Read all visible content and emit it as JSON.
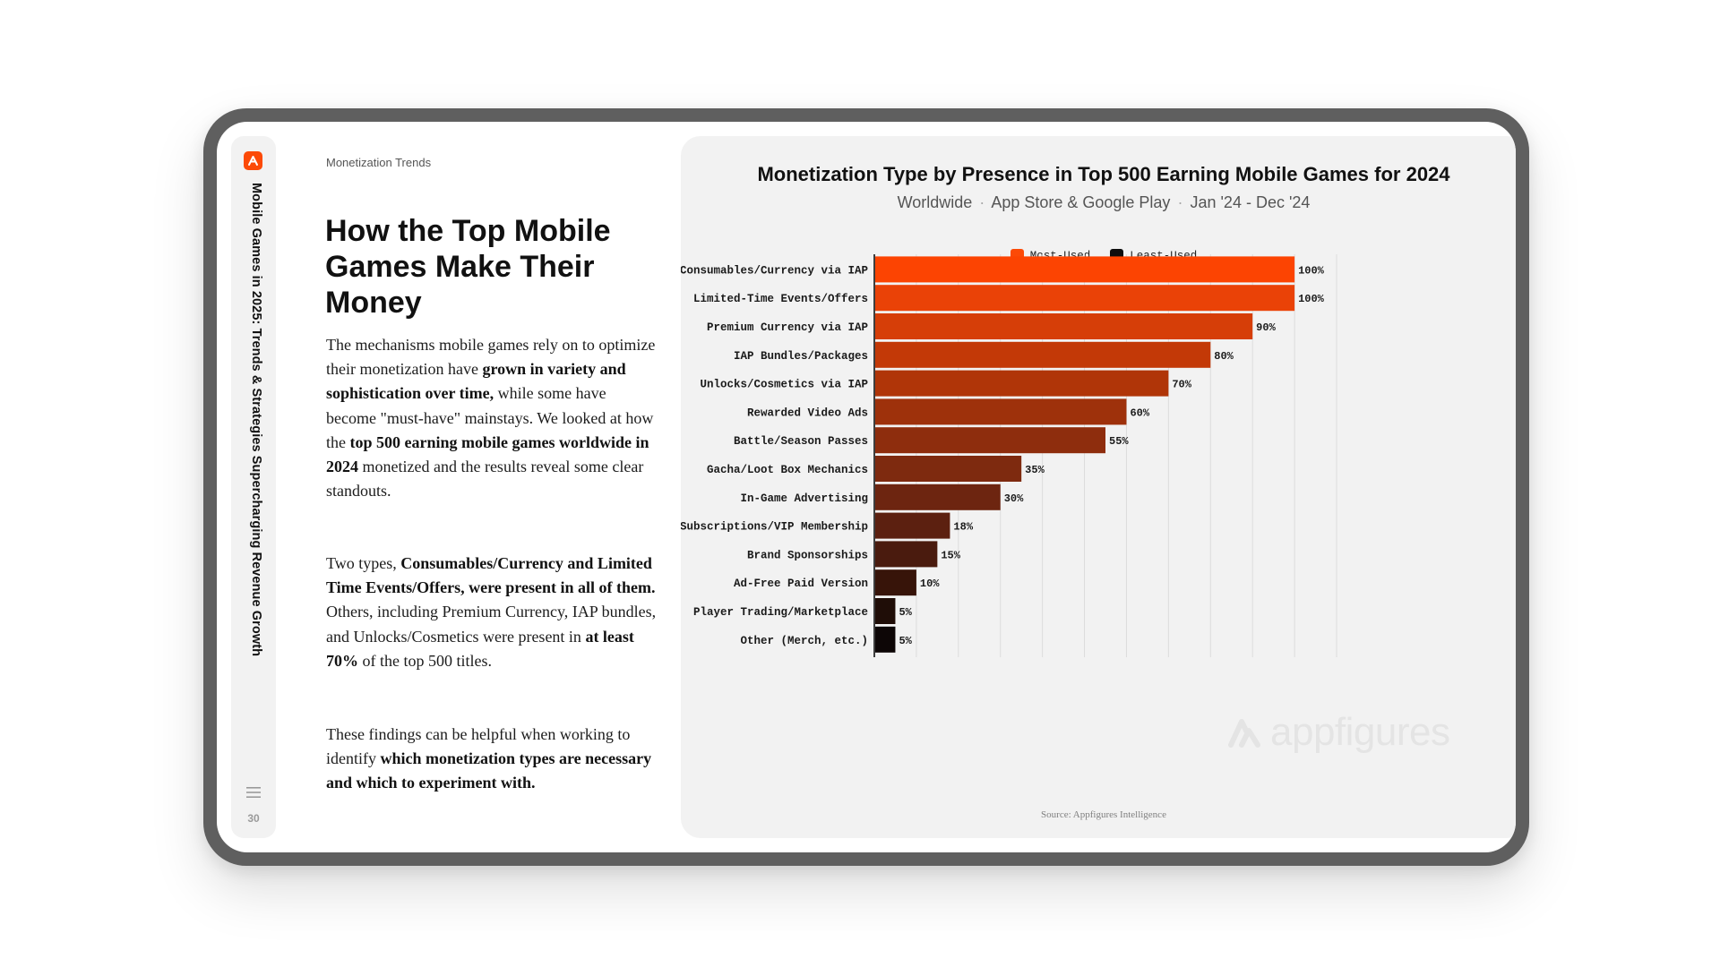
{
  "sidebar": {
    "title": "Mobile Games in 2025: Trends & Strategies Supercharging Revenue Growth",
    "page_number": "30",
    "icons": {
      "logo": "appfigures-logo-icon",
      "menu": "menu-icon"
    }
  },
  "section_label": "Monetization Trends",
  "heading": "How the Top Mobile Games Make Their Money",
  "paragraphs": [
    [
      {
        "text": "The mechanisms mobile games rely on to optimize their monetization have ",
        "bold": false
      },
      {
        "text": "grown in variety and sophistication over time,",
        "bold": true
      },
      {
        "text": " while some have become \"must-have\" mainstays. We looked at how the ",
        "bold": false
      },
      {
        "text": "top 500 earning mobile games worldwide in 2024",
        "bold": true
      },
      {
        "text": " monetized and the results reveal some clear standouts.",
        "bold": false
      }
    ],
    [
      {
        "text": "Two types, ",
        "bold": false
      },
      {
        "text": "Consumables/Currency and Limited Time Events/Offers, were present in all of them.",
        "bold": true
      },
      {
        "text": " Others, including Premium Currency, IAP bundles, and Unlocks/Cosmetics were present in ",
        "bold": false
      },
      {
        "text": "at least 70%",
        "bold": true
      },
      {
        "text": " of the top 500 titles.",
        "bold": false
      }
    ],
    [
      {
        "text": "These findings can be helpful when working to identify ",
        "bold": false
      },
      {
        "text": "which monetization types are necessary and which to experiment with.",
        "bold": true
      }
    ]
  ],
  "chart_data": {
    "type": "bar",
    "orientation": "horizontal",
    "title": "Monetization Type by Presence in Top 500 Earning Mobile Games for 2024",
    "subtitle_parts": [
      "Worldwide",
      "App Store & Google Play",
      "Jan '24 - Dec '24"
    ],
    "categories": [
      "Consumables/Currency via IAP",
      "Limited-Time Events/Offers",
      "Premium Currency via IAP",
      "IAP Bundles/Packages",
      "Unlocks/Cosmetics via IAP",
      "Rewarded Video Ads",
      "Battle/Season Passes",
      "Gacha/Loot Box Mechanics",
      "In-Game Advertising",
      "Subscriptions/VIP Membership",
      "Brand Sponsorships",
      "Ad-Free Paid Version",
      "Player Trading/Marketplace",
      "Other (Merch, etc.)"
    ],
    "values": [
      100,
      100,
      90,
      80,
      70,
      60,
      55,
      35,
      30,
      18,
      15,
      10,
      5,
      5
    ],
    "value_labels": [
      "100%",
      "100%",
      "90%",
      "80%",
      "70%",
      "60%",
      "55%",
      "35%",
      "30%",
      "18%",
      "15%",
      "10%",
      "5%",
      "5%"
    ],
    "xlim": [
      0,
      110
    ],
    "grid": true,
    "legend_position": "top-center",
    "legend": [
      {
        "label": "Most-Used",
        "color": "#fc4a07"
      },
      {
        "label": "Least-Used",
        "color": "#0d0d0d"
      }
    ],
    "colors": [
      "#fc4402",
      "#ea4207",
      "#d63e08",
      "#c33907",
      "#b03508",
      "#9e310b",
      "#8e2d0d",
      "#7e2a0f",
      "#6d2510",
      "#5c2010",
      "#4a1b0e",
      "#371409",
      "#1f0d07",
      "#0d0606"
    ],
    "source": "Source: Appfigures Intelligence",
    "watermark": "appfigures"
  }
}
